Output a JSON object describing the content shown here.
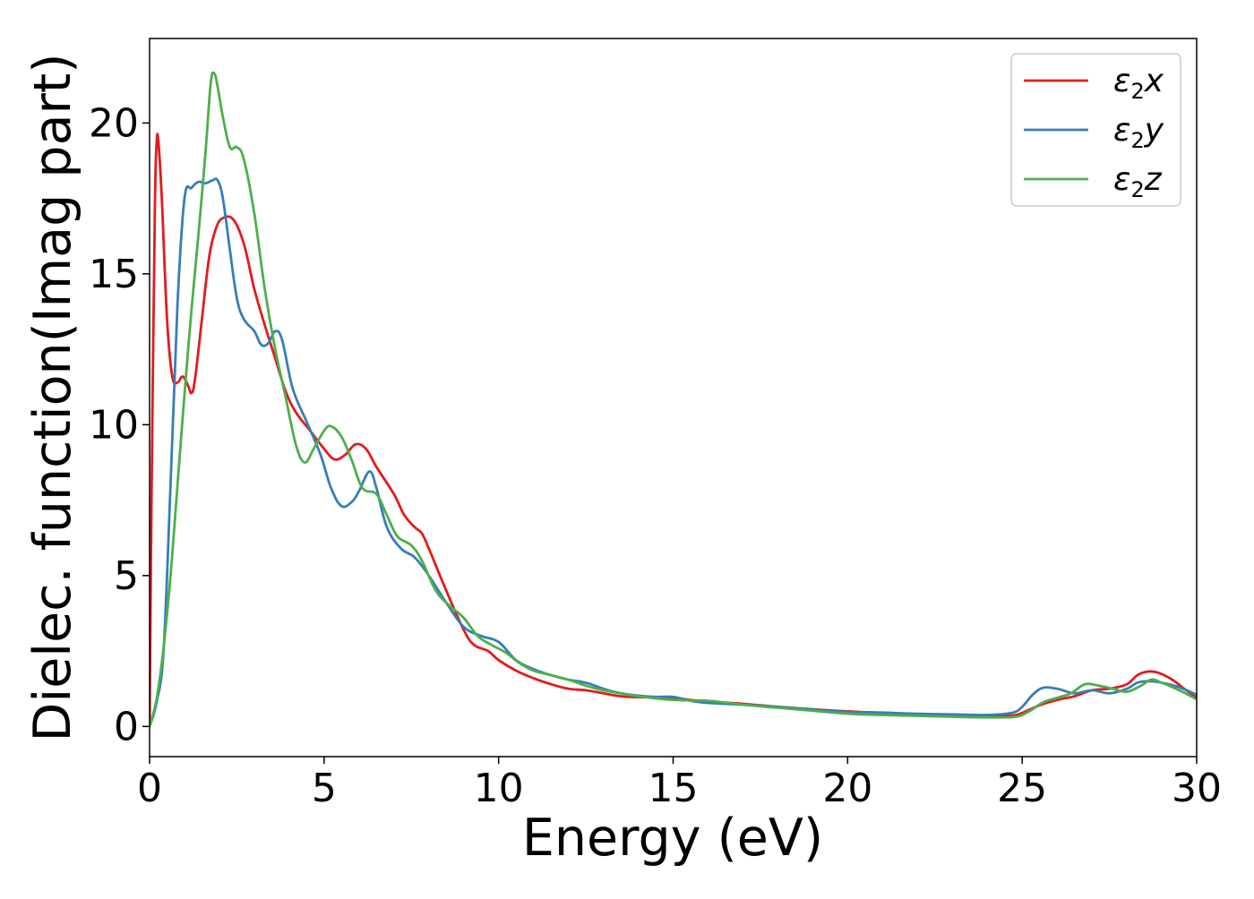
{
  "chart_data": {
    "type": "line",
    "title": "",
    "xlabel": "Energy (eV)",
    "ylabel": "Dielec. function(Imag part)",
    "xlim": [
      0,
      30
    ],
    "ylim": [
      -1.0,
      22.8
    ],
    "grid": false,
    "legend": {
      "placement": "top-right"
    },
    "xticks": [
      {
        "value": 0,
        "label": "0"
      },
      {
        "value": 5,
        "label": "5"
      },
      {
        "value": 10,
        "label": "10"
      },
      {
        "value": 15,
        "label": "15"
      },
      {
        "value": 20,
        "label": "20"
      },
      {
        "value": 25,
        "label": "25"
      },
      {
        "value": 30,
        "label": "30"
      }
    ],
    "yticks": [
      {
        "value": 0,
        "label": "0"
      },
      {
        "value": 5,
        "label": "5"
      },
      {
        "value": 10,
        "label": "10"
      },
      {
        "value": 15,
        "label": "15"
      },
      {
        "value": 20,
        "label": "20"
      }
    ],
    "series": [
      {
        "name": "ε2x",
        "legend_main": "ε",
        "legend_sub": "2",
        "legend_var": "x",
        "color": "#e41a1c",
        "points": [
          [
            0.0,
            0.0
          ],
          [
            0.05,
            7.0
          ],
          [
            0.15,
            17.0
          ],
          [
            0.2,
            19.3
          ],
          [
            0.25,
            19.4
          ],
          [
            0.35,
            17.5
          ],
          [
            0.5,
            13.5
          ],
          [
            0.65,
            11.6
          ],
          [
            0.8,
            11.4
          ],
          [
            0.95,
            11.6
          ],
          [
            1.1,
            11.3
          ],
          [
            1.2,
            11.05
          ],
          [
            1.3,
            11.5
          ],
          [
            1.5,
            13.5
          ],
          [
            1.7,
            15.5
          ],
          [
            1.9,
            16.5
          ],
          [
            2.1,
            16.85
          ],
          [
            2.4,
            16.8
          ],
          [
            2.7,
            16.0
          ],
          [
            3.0,
            14.5
          ],
          [
            3.3,
            13.3
          ],
          [
            3.6,
            12.2
          ],
          [
            3.9,
            11.1
          ],
          [
            4.2,
            10.4
          ],
          [
            4.6,
            9.8
          ],
          [
            5.0,
            9.2
          ],
          [
            5.3,
            8.85
          ],
          [
            5.6,
            9.0
          ],
          [
            5.9,
            9.35
          ],
          [
            6.2,
            9.2
          ],
          [
            6.5,
            8.6
          ],
          [
            7.0,
            7.7
          ],
          [
            7.3,
            7.0
          ],
          [
            7.6,
            6.6
          ],
          [
            7.8,
            6.4
          ],
          [
            8.0,
            5.9
          ],
          [
            8.5,
            4.5
          ],
          [
            9.0,
            3.2
          ],
          [
            9.3,
            2.7
          ],
          [
            9.7,
            2.5
          ],
          [
            10.0,
            2.2
          ],
          [
            10.5,
            1.85
          ],
          [
            11.0,
            1.6
          ],
          [
            11.5,
            1.4
          ],
          [
            12.0,
            1.25
          ],
          [
            12.5,
            1.2
          ],
          [
            13.0,
            1.1
          ],
          [
            13.5,
            1.0
          ],
          [
            14.0,
            0.97
          ],
          [
            14.5,
            0.97
          ],
          [
            15.0,
            0.95
          ],
          [
            15.5,
            0.88
          ],
          [
            16.0,
            0.82
          ],
          [
            17.0,
            0.75
          ],
          [
            18.0,
            0.65
          ],
          [
            19.0,
            0.57
          ],
          [
            20.0,
            0.5
          ],
          [
            21.0,
            0.45
          ],
          [
            22.0,
            0.4
          ],
          [
            23.0,
            0.38
          ],
          [
            24.0,
            0.36
          ],
          [
            24.7,
            0.36
          ],
          [
            25.0,
            0.45
          ],
          [
            25.5,
            0.7
          ],
          [
            26.0,
            0.88
          ],
          [
            26.5,
            1.0
          ],
          [
            27.0,
            1.2
          ],
          [
            27.5,
            1.25
          ],
          [
            28.0,
            1.4
          ],
          [
            28.3,
            1.7
          ],
          [
            28.6,
            1.82
          ],
          [
            28.9,
            1.78
          ],
          [
            29.3,
            1.55
          ],
          [
            29.7,
            1.2
          ],
          [
            30.0,
            0.95
          ]
        ]
      },
      {
        "name": "ε2y",
        "legend_main": "ε",
        "legend_sub": "2",
        "legend_var": "y",
        "color": "#377eb8",
        "points": [
          [
            0.0,
            0.0
          ],
          [
            0.2,
            0.8
          ],
          [
            0.4,
            2.5
          ],
          [
            0.6,
            8.0
          ],
          [
            0.8,
            14.0
          ],
          [
            1.0,
            17.5
          ],
          [
            1.2,
            17.85
          ],
          [
            1.4,
            18.05
          ],
          [
            1.6,
            18.0
          ],
          [
            1.8,
            18.1
          ],
          [
            1.95,
            18.1
          ],
          [
            2.1,
            17.5
          ],
          [
            2.3,
            15.8
          ],
          [
            2.5,
            14.2
          ],
          [
            2.7,
            13.5
          ],
          [
            3.0,
            13.1
          ],
          [
            3.2,
            12.65
          ],
          [
            3.4,
            12.7
          ],
          [
            3.6,
            13.1
          ],
          [
            3.8,
            12.8
          ],
          [
            4.1,
            11.2
          ],
          [
            4.5,
            10.1
          ],
          [
            4.9,
            9.0
          ],
          [
            5.2,
            7.9
          ],
          [
            5.5,
            7.3
          ],
          [
            5.8,
            7.45
          ],
          [
            6.0,
            7.8
          ],
          [
            6.3,
            8.45
          ],
          [
            6.5,
            7.9
          ],
          [
            6.8,
            6.6
          ],
          [
            7.2,
            5.9
          ],
          [
            7.6,
            5.6
          ],
          [
            8.0,
            5.0
          ],
          [
            8.5,
            4.1
          ],
          [
            9.0,
            3.3
          ],
          [
            9.5,
            3.0
          ],
          [
            10.0,
            2.8
          ],
          [
            10.5,
            2.2
          ],
          [
            11.0,
            1.9
          ],
          [
            11.5,
            1.7
          ],
          [
            12.0,
            1.55
          ],
          [
            12.5,
            1.45
          ],
          [
            13.0,
            1.25
          ],
          [
            13.5,
            1.1
          ],
          [
            14.0,
            1.02
          ],
          [
            14.5,
            0.98
          ],
          [
            15.0,
            0.98
          ],
          [
            15.5,
            0.85
          ],
          [
            16.0,
            0.78
          ],
          [
            17.0,
            0.72
          ],
          [
            18.0,
            0.65
          ],
          [
            19.0,
            0.56
          ],
          [
            20.0,
            0.48
          ],
          [
            21.0,
            0.46
          ],
          [
            22.0,
            0.42
          ],
          [
            23.0,
            0.4
          ],
          [
            24.0,
            0.38
          ],
          [
            24.7,
            0.45
          ],
          [
            25.0,
            0.65
          ],
          [
            25.3,
            1.05
          ],
          [
            25.6,
            1.28
          ],
          [
            26.0,
            1.25
          ],
          [
            26.5,
            1.1
          ],
          [
            27.0,
            1.2
          ],
          [
            27.5,
            1.1
          ],
          [
            28.0,
            1.25
          ],
          [
            28.3,
            1.45
          ],
          [
            28.6,
            1.5
          ],
          [
            29.0,
            1.45
          ],
          [
            29.5,
            1.3
          ],
          [
            30.0,
            1.05
          ]
        ]
      },
      {
        "name": "ε2z",
        "legend_main": "ε",
        "legend_sub": "2",
        "legend_var": "z",
        "color": "#4daf4a",
        "points": [
          [
            0.0,
            0.0
          ],
          [
            0.2,
            0.9
          ],
          [
            0.4,
            2.6
          ],
          [
            0.6,
            5.0
          ],
          [
            0.8,
            8.0
          ],
          [
            1.0,
            11.0
          ],
          [
            1.2,
            13.8
          ],
          [
            1.4,
            16.3
          ],
          [
            1.6,
            19.0
          ],
          [
            1.75,
            21.3
          ],
          [
            1.85,
            21.65
          ],
          [
            1.95,
            21.2
          ],
          [
            2.1,
            20.2
          ],
          [
            2.3,
            19.2
          ],
          [
            2.5,
            19.2
          ],
          [
            2.7,
            18.8
          ],
          [
            3.0,
            17.0
          ],
          [
            3.3,
            14.5
          ],
          [
            3.6,
            12.5
          ],
          [
            3.9,
            10.9
          ],
          [
            4.2,
            9.3
          ],
          [
            4.45,
            8.75
          ],
          [
            4.7,
            9.2
          ],
          [
            5.0,
            9.8
          ],
          [
            5.2,
            9.95
          ],
          [
            5.5,
            9.6
          ],
          [
            5.8,
            8.8
          ],
          [
            6.1,
            7.9
          ],
          [
            6.5,
            7.7
          ],
          [
            6.8,
            7.0
          ],
          [
            7.1,
            6.3
          ],
          [
            7.5,
            6.0
          ],
          [
            7.8,
            5.5
          ],
          [
            8.2,
            4.5
          ],
          [
            8.6,
            4.0
          ],
          [
            9.0,
            3.6
          ],
          [
            9.4,
            3.0
          ],
          [
            9.8,
            2.7
          ],
          [
            10.2,
            2.45
          ],
          [
            10.6,
            2.1
          ],
          [
            11.0,
            1.85
          ],
          [
            11.5,
            1.7
          ],
          [
            12.0,
            1.55
          ],
          [
            12.5,
            1.35
          ],
          [
            13.0,
            1.2
          ],
          [
            13.5,
            1.1
          ],
          [
            14.0,
            1.0
          ],
          [
            15.0,
            0.88
          ],
          [
            16.0,
            0.85
          ],
          [
            17.0,
            0.72
          ],
          [
            18.0,
            0.62
          ],
          [
            19.0,
            0.52
          ],
          [
            20.0,
            0.42
          ],
          [
            21.0,
            0.38
          ],
          [
            22.0,
            0.35
          ],
          [
            23.0,
            0.32
          ],
          [
            24.0,
            0.3
          ],
          [
            24.8,
            0.32
          ],
          [
            25.2,
            0.5
          ],
          [
            25.6,
            0.8
          ],
          [
            26.0,
            0.95
          ],
          [
            26.4,
            1.1
          ],
          [
            26.8,
            1.4
          ],
          [
            27.2,
            1.35
          ],
          [
            27.6,
            1.25
          ],
          [
            28.0,
            1.15
          ],
          [
            28.4,
            1.35
          ],
          [
            28.7,
            1.55
          ],
          [
            29.0,
            1.45
          ],
          [
            29.5,
            1.2
          ],
          [
            30.0,
            0.9
          ]
        ]
      }
    ]
  }
}
